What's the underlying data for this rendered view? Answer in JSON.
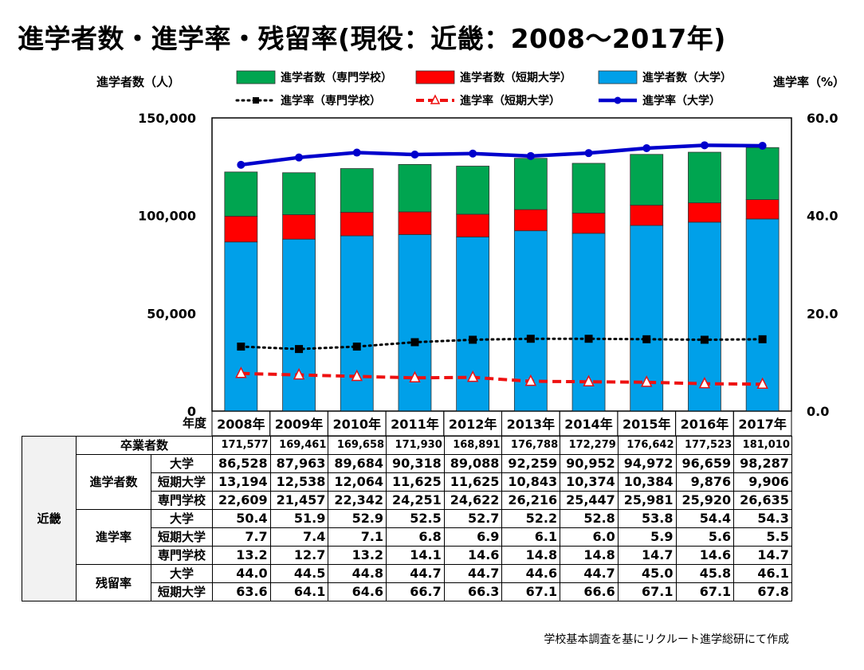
{
  "title": "進学者数・進学率・残留率(現役：近畿：2008～2017年)",
  "axis": {
    "left_unit": "進学者数（人）",
    "right_unit": "進学率（%）",
    "left_ticks": [
      "150,000",
      "100,000",
      "50,000",
      "0"
    ],
    "right_ticks": [
      "60.0",
      "40.0",
      "20.0",
      "0.0"
    ],
    "year_label": "年度"
  },
  "colors": {
    "university": "#00a0e9",
    "junior": "#ff0000",
    "vocational": "#00a550",
    "rate_univ": "#0000cc",
    "rate_junior": "#ee1111",
    "rate_voc": "#000000"
  },
  "chart_data": {
    "type": "bar",
    "stacked": true,
    "categories": [
      "2008年",
      "2009年",
      "2010年",
      "2011年",
      "2012年",
      "2013年",
      "2014年",
      "2015年",
      "2016年",
      "2017年"
    ],
    "ylim": [
      0,
      150000
    ],
    "y2lim": [
      0,
      60
    ],
    "series": [
      {
        "name": "進学者数（大学）",
        "values": [
          86528,
          87963,
          89684,
          90318,
          89088,
          92259,
          90952,
          94972,
          96659,
          98287
        ]
      },
      {
        "name": "進学者数（短期大学）",
        "values": [
          13194,
          12538,
          12064,
          11625,
          11625,
          10843,
          10374,
          10384,
          9876,
          9906
        ]
      },
      {
        "name": "進学者数（専門学校）",
        "values": [
          22609,
          21457,
          22342,
          24251,
          24622,
          26216,
          25447,
          25981,
          25920,
          26635
        ]
      }
    ],
    "line_series": [
      {
        "name": "進学率（専門学校）",
        "values": [
          13.2,
          12.7,
          13.2,
          14.1,
          14.6,
          14.8,
          14.8,
          14.7,
          14.6,
          14.7
        ]
      },
      {
        "name": "進学率（短期大学）",
        "values": [
          7.7,
          7.4,
          7.1,
          6.8,
          6.9,
          6.1,
          6.0,
          5.9,
          5.6,
          5.5
        ]
      },
      {
        "name": "進学率（大学）",
        "values": [
          50.4,
          51.9,
          52.9,
          52.5,
          52.7,
          52.2,
          52.8,
          53.8,
          54.4,
          54.3
        ]
      }
    ],
    "legend_position": "top"
  },
  "table": {
    "region": "近畿",
    "graduates_label": "卒業者数",
    "graduates": [
      "171,577",
      "169,461",
      "169,658",
      "171,930",
      "168,891",
      "176,788",
      "172,279",
      "176,642",
      "177,523",
      "181,010"
    ],
    "groups": [
      {
        "label": "進学者数",
        "rows": [
          {
            "label": "大学",
            "values": [
              "86,528",
              "87,963",
              "89,684",
              "90,318",
              "89,088",
              "92,259",
              "90,952",
              "94,972",
              "96,659",
              "98,287"
            ]
          },
          {
            "label": "短期大学",
            "values": [
              "13,194",
              "12,538",
              "12,064",
              "11,625",
              "11,625",
              "10,843",
              "10,374",
              "10,384",
              "9,876",
              "9,906"
            ]
          },
          {
            "label": "専門学校",
            "values": [
              "22,609",
              "21,457",
              "22,342",
              "24,251",
              "24,622",
              "26,216",
              "25,447",
              "25,981",
              "25,920",
              "26,635"
            ]
          }
        ]
      },
      {
        "label": "進学率",
        "rows": [
          {
            "label": "大学",
            "values": [
              "50.4",
              "51.9",
              "52.9",
              "52.5",
              "52.7",
              "52.2",
              "52.8",
              "53.8",
              "54.4",
              "54.3"
            ]
          },
          {
            "label": "短期大学",
            "values": [
              "7.7",
              "7.4",
              "7.1",
              "6.8",
              "6.9",
              "6.1",
              "6.0",
              "5.9",
              "5.6",
              "5.5"
            ]
          },
          {
            "label": "専門学校",
            "values": [
              "13.2",
              "12.7",
              "13.2",
              "14.1",
              "14.6",
              "14.8",
              "14.8",
              "14.7",
              "14.6",
              "14.7"
            ]
          }
        ]
      },
      {
        "label": "残留率",
        "rows": [
          {
            "label": "大学",
            "values": [
              "44.0",
              "44.5",
              "44.8",
              "44.7",
              "44.7",
              "44.6",
              "44.7",
              "45.0",
              "45.8",
              "46.1"
            ]
          },
          {
            "label": "短期大学",
            "values": [
              "63.6",
              "64.1",
              "64.6",
              "66.7",
              "66.3",
              "67.1",
              "66.6",
              "67.1",
              "67.1",
              "67.8"
            ]
          }
        ]
      }
    ]
  },
  "source": "学校基本調査を基にリクルート進学総研にて作成"
}
